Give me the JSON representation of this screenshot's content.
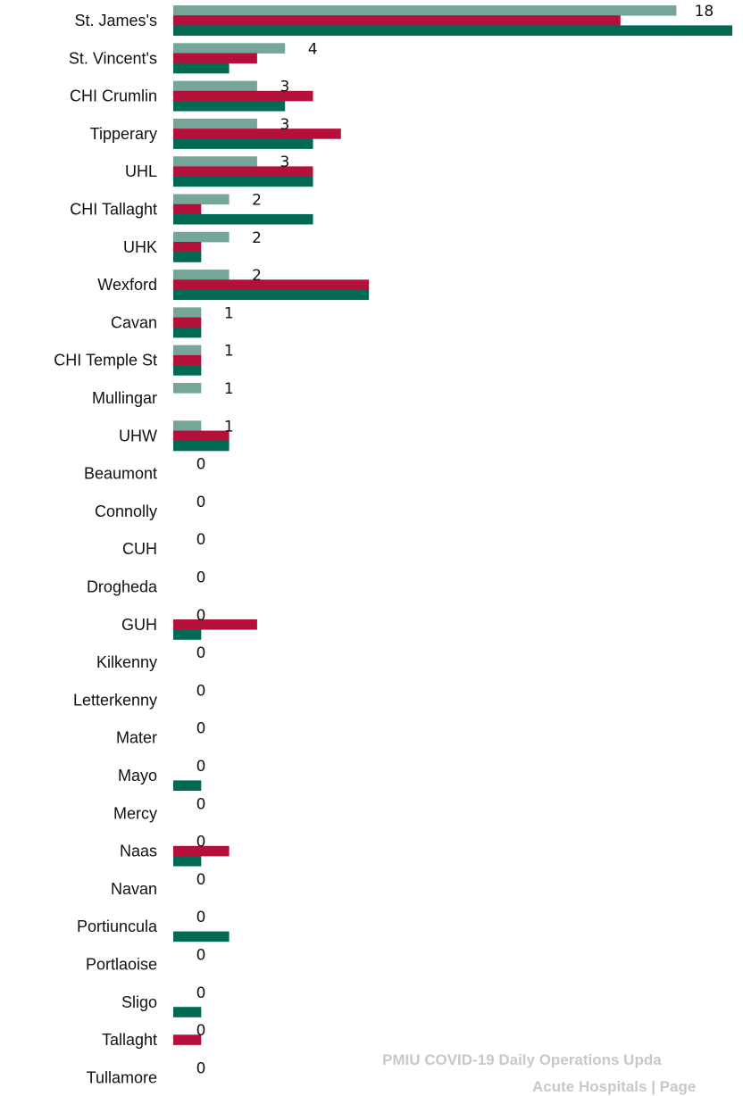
{
  "chart_data": {
    "type": "bar",
    "orientation": "horizontal",
    "categories": [
      "St. James's",
      "St. Vincent's",
      "CHI Crumlin",
      "Tipperary",
      "UHL",
      "CHI Tallaght",
      "UHK",
      "Wexford",
      "Cavan",
      "CHI Temple St",
      "Mullingar",
      "UHW",
      "Beaumont",
      "Connolly",
      "CUH",
      "Drogheda",
      "GUH",
      "Kilkenny",
      "Letterkenny",
      "Mater",
      "Mayo",
      "Mercy",
      "Naas",
      "Navan",
      "Portiuncula",
      "Portlaoise",
      "Sligo",
      "Tallaght",
      "Tullamore"
    ],
    "series": [
      {
        "color": "#76a69a",
        "values": [
          18,
          4,
          3,
          3,
          3,
          2,
          2,
          2,
          1,
          1,
          1,
          1,
          0,
          0,
          0,
          0,
          0,
          0,
          0,
          0,
          0,
          0,
          0,
          0,
          0,
          0,
          0,
          0,
          0
        ]
      },
      {
        "color": "#b5103a",
        "values": [
          16,
          3,
          5,
          6,
          5,
          1,
          1,
          7,
          1,
          1,
          0,
          2,
          0,
          0,
          0,
          0,
          3,
          0,
          0,
          0,
          0,
          0,
          2,
          0,
          0,
          0,
          0,
          1,
          0
        ]
      },
      {
        "color": "#006a55",
        "values": [
          20,
          2,
          4,
          5,
          5,
          5,
          1,
          7,
          1,
          1,
          0,
          2,
          0,
          0,
          0,
          0,
          1,
          0,
          0,
          0,
          1,
          0,
          1,
          0,
          2,
          0,
          1,
          0,
          0
        ]
      }
    ],
    "data_labels": [
      "18",
      "4",
      "3",
      "3",
      "3",
      "2",
      "2",
      "2",
      "1",
      "1",
      "1",
      "1",
      "0",
      "0",
      "0",
      "0",
      "0",
      "0",
      "0",
      "0",
      "0",
      "0",
      "0",
      "0",
      "0",
      "0",
      "0",
      "0",
      "0"
    ],
    "xlim": [
      0,
      20
    ],
    "grid": false,
    "legend": "none"
  },
  "footer": {
    "line1": "PMIU COVID-19 Daily Operations Upda",
    "line2": "Acute Hospitals | Page"
  },
  "colors": {
    "light_series": "#76a69a",
    "red_series": "#b5103a",
    "dark_series": "#006a55"
  }
}
